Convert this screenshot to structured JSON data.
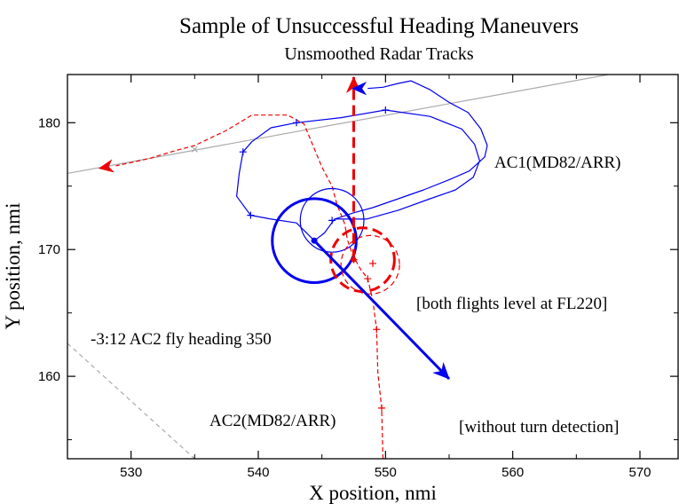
{
  "chart_data": {
    "type": "line",
    "title": "Sample of Unsuccessful Heading Maneuvers",
    "subtitle": "Unsmoothed Radar Tracks",
    "xlabel": "X position, nmi",
    "ylabel": "Y position, nmi",
    "xlim": [
      525,
      573
    ],
    "ylim": [
      153.5,
      183.8
    ],
    "xticks": [
      530,
      540,
      550,
      560,
      570
    ],
    "yticks": [
      160,
      170,
      180
    ],
    "grid": false,
    "annotations": {
      "ac1": "AC1(MD82/ARR)",
      "ac2": "AC2(MD82/ARR)",
      "level": "[both flights level at FL220]",
      "heading": "-3:12 AC2 fly heading 350",
      "detection": "[without turn detection]"
    },
    "colors": {
      "ac1": "#0000ee",
      "ac2": "#ee0000",
      "reference": "#aaaaaa"
    },
    "series": [
      {
        "id": "ac1_track",
        "color": "#0000ee",
        "style": "solid",
        "points": [
          [
            544.4,
            170.7
          ],
          [
            545.2,
            171.3
          ],
          [
            546.0,
            172.4
          ],
          [
            547.5,
            172.9
          ],
          [
            549.0,
            173.3
          ],
          [
            551.0,
            174.0
          ],
          [
            553.0,
            174.7
          ],
          [
            555.0,
            175.5
          ],
          [
            556.6,
            176.2
          ],
          [
            557.8,
            177.3
          ],
          [
            558.0,
            178.2
          ],
          [
            557.5,
            179.5
          ],
          [
            556.5,
            180.8
          ],
          [
            555.0,
            181.6
          ],
          [
            553.5,
            182.6
          ],
          [
            552.0,
            183.3
          ],
          [
            551.0,
            183.1
          ],
          [
            549.8,
            182.8
          ],
          [
            548.6,
            182.7
          ]
        ]
      },
      {
        "id": "ac1_loop",
        "color": "#0000ee",
        "style": "solid",
        "points": [
          [
            546.0,
            172.4
          ],
          [
            548.5,
            172.4
          ],
          [
            551.0,
            173.1
          ],
          [
            553.5,
            174.0
          ],
          [
            555.5,
            174.7
          ],
          [
            556.9,
            175.7
          ],
          [
            557.4,
            177.0
          ],
          [
            557.0,
            178.3
          ],
          [
            556.0,
            179.5
          ],
          [
            553.5,
            180.5
          ],
          [
            550.0,
            181.0
          ],
          [
            546.5,
            180.4
          ],
          [
            543.0,
            180.0
          ],
          [
            541.0,
            179.6
          ],
          [
            539.5,
            178.5
          ],
          [
            538.8,
            177.7
          ],
          [
            538.5,
            176.0
          ],
          [
            538.3,
            174.2
          ],
          [
            539.4,
            172.7
          ],
          [
            541.0,
            172.4
          ],
          [
            543.0,
            172.1
          ],
          [
            544.4,
            170.7
          ]
        ]
      },
      {
        "id": "ac2_track",
        "color": "#ee0000",
        "style": "dashed",
        "points": [
          [
            549.8,
            153.5
          ],
          [
            549.7,
            157.5
          ],
          [
            549.4,
            160.3
          ],
          [
            549.3,
            163.7
          ],
          [
            549.0,
            166.0
          ],
          [
            548.6,
            167.7
          ],
          [
            548.0,
            168.5
          ],
          [
            547.4,
            169.6
          ],
          [
            547.0,
            170.8
          ],
          [
            546.8,
            172.0
          ],
          [
            546.2,
            173.5
          ],
          [
            545.8,
            175.0
          ],
          [
            545.0,
            176.5
          ],
          [
            544.3,
            178.2
          ],
          [
            543.6,
            179.9
          ],
          [
            542.3,
            180.6
          ],
          [
            539.5,
            180.6
          ],
          [
            537.5,
            179.4
          ],
          [
            535.0,
            178.2
          ],
          [
            533.5,
            177.8
          ],
          [
            531.5,
            177.2
          ],
          [
            530.2,
            176.9
          ],
          [
            528.8,
            176.6
          ]
        ]
      }
    ],
    "markers": {
      "ac1_plus": [
        [
          539.4,
          172.7
        ],
        [
          538.8,
          177.7
        ],
        [
          543.0,
          180.0
        ],
        [
          550.0,
          181.0
        ],
        [
          545.8,
          172.3
        ]
      ],
      "ac2_plus": [
        [
          549.7,
          157.5
        ],
        [
          549.3,
          163.7
        ],
        [
          548.6,
          167.7
        ],
        [
          547.5,
          169.2
        ],
        [
          549.0,
          168.9
        ]
      ],
      "reference_x": [
        [
          535.0,
          177.9
        ]
      ]
    },
    "reference_lines": [
      {
        "id": "ac1_reference",
        "style": "solid",
        "from": [
          525.0,
          176.0
        ],
        "to": [
          573.0,
          184.8
        ]
      },
      {
        "id": "ac2_reference",
        "style": "dashed",
        "from": [
          525.0,
          162.6
        ],
        "to": [
          535.0,
          153.5
        ]
      }
    ],
    "circles": [
      {
        "id": "ac1_current",
        "color": "#0000ee",
        "style": "thick-solid",
        "center": [
          544.4,
          170.7
        ],
        "radius_x": 3.3
      },
      {
        "id": "ac1_future",
        "color": "#0000ee",
        "style": "thin-solid",
        "center": [
          545.8,
          172.3
        ],
        "radius_x": 2.5
      },
      {
        "id": "ac2_current",
        "color": "#ee0000",
        "style": "thick-dashed",
        "center": [
          548.2,
          169.2
        ],
        "radius_x": 2.5
      },
      {
        "id": "ac2_future",
        "color": "#ee0000",
        "style": "thin-dashed",
        "center": [
          548.8,
          168.8
        ],
        "radius_x": 2.3
      }
    ],
    "vectors": [
      {
        "id": "ac1_velocity",
        "color": "#0000ee",
        "style": "thick-solid",
        "from": [
          544.4,
          170.7
        ],
        "to": [
          555.0,
          159.8
        ]
      },
      {
        "id": "ac2_velocity",
        "color": "#ee0000",
        "style": "thick-dashed",
        "from": [
          547.5,
          169.2
        ],
        "to": [
          547.5,
          183.6
        ]
      }
    ],
    "arrowheads": [
      {
        "id": "ac1_track_end",
        "color": "#0000ee",
        "tip": [
          547.4,
          182.7
        ],
        "from": [
          548.8,
          182.7
        ]
      },
      {
        "id": "ac2_track_end",
        "color": "#ee0000",
        "tip": [
          527.5,
          176.4
        ],
        "from": [
          529.2,
          176.7
        ]
      }
    ]
  }
}
